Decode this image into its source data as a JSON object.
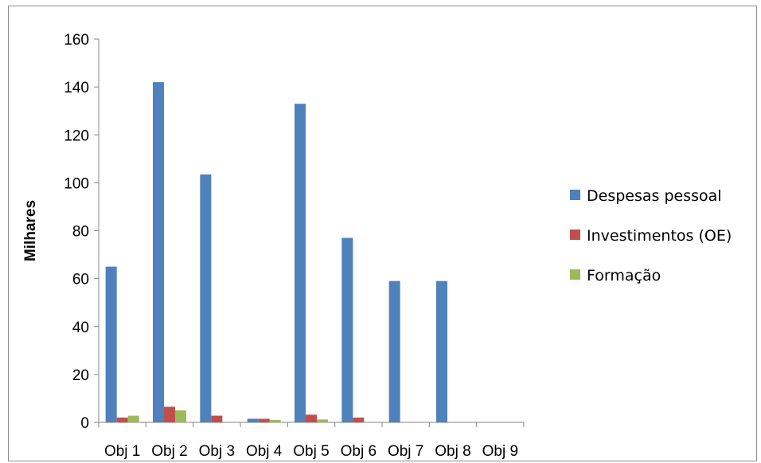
{
  "chart_data": {
    "type": "bar",
    "title": "",
    "xlabel": "",
    "ylabel": "Milhares",
    "ylim": [
      0,
      160
    ],
    "yticks": [
      0,
      20,
      40,
      60,
      80,
      100,
      120,
      140,
      160
    ],
    "grid": false,
    "legend_position": "right",
    "categories": [
      "Obj 1",
      "Obj 2",
      "Obj 3",
      "Obj 4",
      "Obj 5",
      "Obj 6",
      "Obj 7",
      "Obj 8",
      "Obj 9"
    ],
    "series": [
      {
        "name": "Despesas pessoal",
        "color": "#4f81bd",
        "values": [
          65,
          142,
          103.5,
          1.5,
          133,
          77,
          59,
          59,
          0
        ]
      },
      {
        "name": "Investimentos (OE)",
        "color": "#c0504d",
        "values": [
          2,
          6.5,
          2.8,
          1.5,
          3.2,
          2,
          0,
          0,
          0
        ]
      },
      {
        "name": "Formação",
        "color": "#9bbb59",
        "values": [
          2.8,
          5,
          0,
          1,
          1.2,
          0,
          0,
          0,
          0
        ]
      }
    ]
  }
}
